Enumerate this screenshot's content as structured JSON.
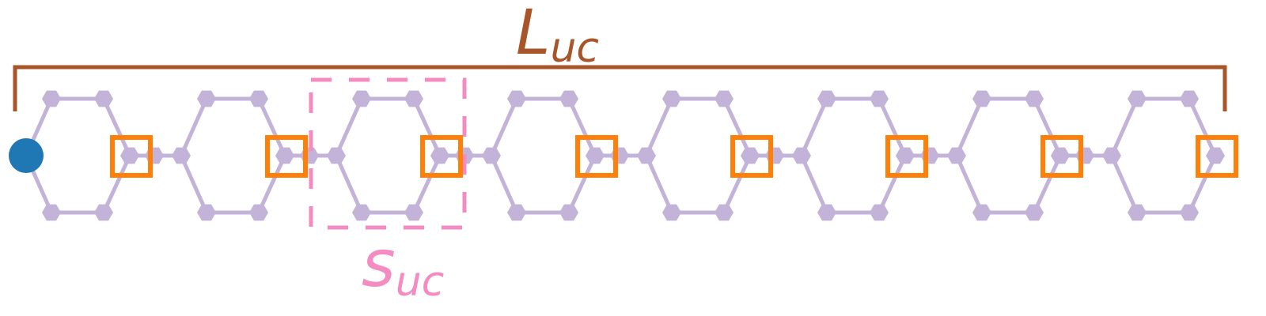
{
  "labels": {
    "lattice_length_main": "L",
    "lattice_length_sub": "uc",
    "unit_cell_main": "s",
    "unit_cell_sub": "uc"
  },
  "colors": {
    "background": "#ffffff",
    "lattice": "#c3b3d9",
    "bracket": "#a8552a",
    "unit_cell_box": "#f48bc1",
    "marker_square": "#ff8008",
    "marker_circle": "#1f77b4"
  },
  "structure": {
    "ring_count": 8,
    "boxed_unit_cell_index": 2,
    "start_marker": "circle",
    "ring_end_marker": "square"
  }
}
